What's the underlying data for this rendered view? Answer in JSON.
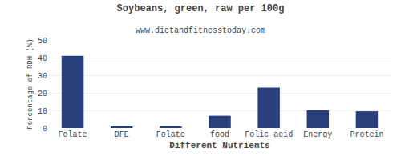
{
  "chart_data": {
    "type": "bar",
    "title": "Soybeans, green, raw per 100g",
    "subtitle": "www.dietandfitnesstoday.com",
    "xlabel": "Different Nutrients",
    "ylabel": "Percentage of RDH (%)",
    "categories": [
      "Folate",
      "DFE",
      "Folate",
      "food",
      "Folic acid",
      "Energy",
      "Protein"
    ],
    "values": [
      41,
      0.5,
      0.5,
      7,
      23,
      10,
      9.5
    ],
    "color": "#283f7b",
    "ylim": [
      0,
      50
    ],
    "yticks": [
      0,
      10,
      20,
      30,
      40,
      50
    ],
    "grid": true
  }
}
